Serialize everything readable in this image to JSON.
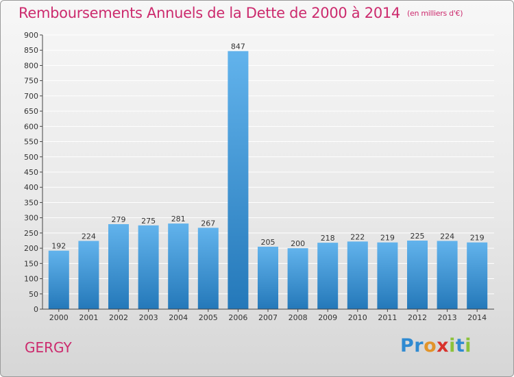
{
  "header": {
    "title": "Remboursements Annuels de la Dette de 2000 à 2014",
    "unit": "(en milliers d'€)"
  },
  "footer": {
    "city": "GERGY",
    "logo": [
      "Pr",
      "o",
      "x",
      "i",
      "t",
      "i"
    ]
  },
  "colors": {
    "title": "#cc2a6d",
    "bar_top": "#62b3ec",
    "bar_bottom": "#2478b9",
    "grid": "#ffffff",
    "axis": "#444444"
  },
  "chart_data": {
    "type": "bar",
    "categories": [
      "2000",
      "2001",
      "2002",
      "2003",
      "2004",
      "2005",
      "2006",
      "2007",
      "2008",
      "2009",
      "2010",
      "2011",
      "2012",
      "2013",
      "2014"
    ],
    "values": [
      192,
      224,
      279,
      275,
      281,
      267,
      847,
      205,
      200,
      218,
      222,
      219,
      225,
      224,
      219
    ],
    "title": "Remboursements Annuels de la Dette de 2000 à 2014",
    "xlabel": "",
    "ylabel": "",
    "ylim": [
      0,
      900
    ],
    "yticks": [
      0,
      50,
      100,
      150,
      200,
      250,
      300,
      350,
      400,
      450,
      500,
      550,
      600,
      650,
      700,
      750,
      800,
      850,
      900
    ],
    "grid": true,
    "legend": "none"
  }
}
